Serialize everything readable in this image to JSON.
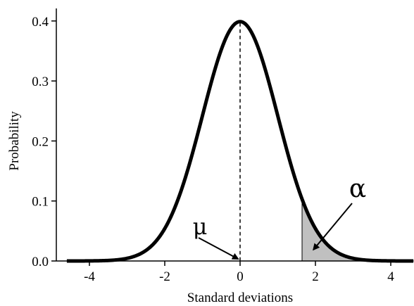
{
  "chart_data": {
    "type": "line",
    "title": "",
    "xlabel": "Standard deviations",
    "ylabel": "Probability",
    "xlim": [
      -4.6,
      4.6
    ],
    "ylim": [
      0,
      0.4
    ],
    "x_ticks": [
      {
        "value": -4,
        "label": "-4"
      },
      {
        "value": -2,
        "label": "-2"
      },
      {
        "value": 0,
        "label": "0"
      },
      {
        "value": 2,
        "label": "2"
      },
      {
        "value": 4,
        "label": "4"
      }
    ],
    "y_ticks": [
      {
        "value": 0.0,
        "label": "0.0"
      },
      {
        "value": 0.1,
        "label": "0.1"
      },
      {
        "value": 0.2,
        "label": "0.2"
      },
      {
        "value": 0.3,
        "label": "0.3"
      },
      {
        "value": 0.4,
        "label": "0.4"
      }
    ],
    "series": [
      {
        "distribution": "standard normal",
        "mean": 0,
        "sd": 1,
        "color": "#000000"
      }
    ],
    "mean_line": {
      "x": 0,
      "style": "dashed"
    },
    "shaded_region": {
      "from": 1.645,
      "to": 4.6,
      "fill": "#c0c0c0"
    },
    "annotations": [
      {
        "id": "mu",
        "text": "μ",
        "points_to": {
          "x": 0,
          "y": 0
        }
      },
      {
        "id": "alpha",
        "text": "α",
        "points_to": {
          "x": 1.95,
          "y": 0.012
        }
      }
    ],
    "grid": false,
    "legend": "none"
  }
}
